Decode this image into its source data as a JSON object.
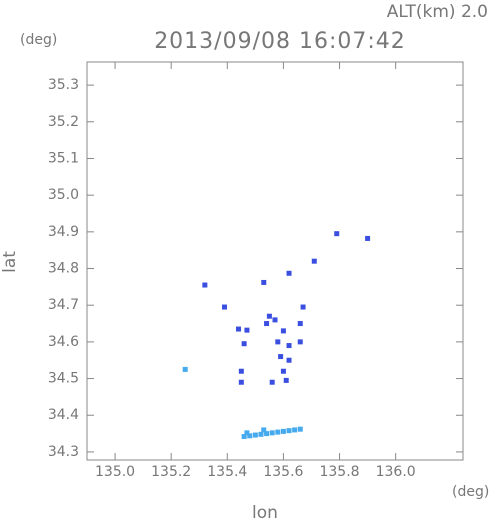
{
  "chart_data": {
    "type": "scatter",
    "title": "2013/09/08 16:07:42",
    "subtitle": "ALT(km) 2.0",
    "x_label": "lon",
    "y_label": "lat",
    "x_unit": "(deg)",
    "y_unit": "(deg)",
    "xlim": [
      134.9,
      136.24
    ],
    "ylim": [
      34.278,
      35.363
    ],
    "xticks": [
      {
        "value": 135,
        "label": "135.0"
      },
      135.2,
      135.4,
      135.6,
      135.8,
      {
        "value": 136,
        "label": "136.0"
      }
    ],
    "yticks": [
      34.3,
      34.4,
      34.5,
      34.6,
      34.7,
      34.8,
      34.9,
      {
        "value": 35,
        "label": "35.0"
      },
      35.1,
      35.2,
      35.3
    ],
    "series": [
      {
        "color": "#3a4fe0",
        "x": [
          135.79,
          135.9,
          135.71,
          135.62,
          135.32,
          135.53,
          135.39,
          135.67,
          135.44,
          135.47,
          135.54,
          135.57,
          135.6,
          135.62,
          135.59,
          135.62,
          135.58,
          135.66,
          135.66,
          135.46,
          135.45,
          135.45,
          135.56,
          135.61,
          135.6,
          135.55
        ],
        "values": [
          34.895,
          34.882,
          34.82,
          34.787,
          34.755,
          34.762,
          34.695,
          34.695,
          34.635,
          34.632,
          34.65,
          34.66,
          34.63,
          34.59,
          34.56,
          34.55,
          34.6,
          34.65,
          34.6,
          34.595,
          34.52,
          34.49,
          34.49,
          34.495,
          34.52,
          34.67
        ]
      },
      {
        "color": "#45aaee",
        "x": [
          135.25,
          135.46,
          135.48,
          135.5,
          135.52,
          135.54,
          135.56,
          135.58,
          135.6,
          135.62,
          135.64,
          135.66,
          135.47,
          135.53
        ],
        "values": [
          34.525,
          34.342,
          34.344,
          34.346,
          34.348,
          34.35,
          34.352,
          34.354,
          34.356,
          34.358,
          34.36,
          34.362,
          34.352,
          34.36
        ]
      }
    ]
  }
}
